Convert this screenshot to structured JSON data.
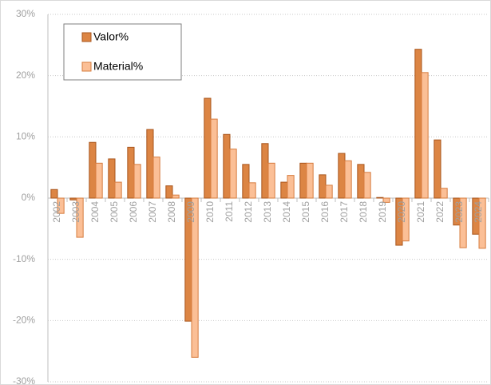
{
  "chart_data": {
    "type": "bar",
    "categories": [
      "2002",
      "2003",
      "2004",
      "2005",
      "2006",
      "2007",
      "2008",
      "2009",
      "2010",
      "2011",
      "2012",
      "2013",
      "2014",
      "2015",
      "2016",
      "2017",
      "2018",
      "2019",
      "2020",
      "2021",
      "2022",
      "2023",
      "2024"
    ],
    "series": [
      {
        "name": "Valor%",
        "color": "#dc8544",
        "values": [
          1.4,
          -0.3,
          9.1,
          6.4,
          8.3,
          11.2,
          2.0,
          -20.1,
          16.3,
          10.4,
          5.5,
          8.9,
          2.6,
          5.7,
          3.8,
          7.3,
          5.5,
          0.1,
          -7.7,
          24.3,
          9.5,
          -4.4,
          -5.9
        ]
      },
      {
        "name": "Material%",
        "color": "#fbbf96",
        "values": [
          -2.5,
          -6.4,
          5.7,
          2.6,
          5.5,
          6.7,
          0.5,
          -26.0,
          12.9,
          8.0,
          2.5,
          5.7,
          3.7,
          5.7,
          2.1,
          6.1,
          4.2,
          -0.7,
          -7.0,
          20.5,
          1.6,
          -8.1,
          -8.2
        ]
      }
    ],
    "ylim": [
      -30,
      30
    ],
    "yticks": [
      {
        "value": -30,
        "label": "-30%"
      },
      {
        "value": -20,
        "label": "-20%"
      },
      {
        "value": -10,
        "label": "-10%"
      },
      {
        "value": 0,
        "label": "0%"
      },
      {
        "value": 10,
        "label": "10%"
      },
      {
        "value": 20,
        "label": "20%"
      },
      {
        "value": 30,
        "label": "30%"
      }
    ],
    "grid": true,
    "legend": "upper-left"
  }
}
